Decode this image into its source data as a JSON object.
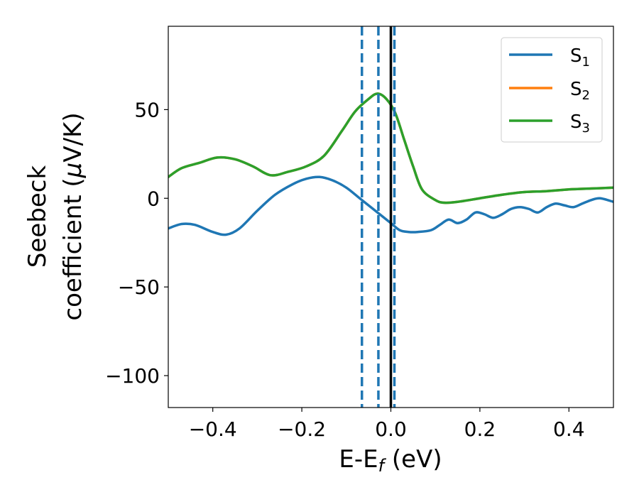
{
  "chart_data": {
    "type": "line",
    "title": "",
    "xlabel": {
      "main": "E-E",
      "sub": "f",
      "tail": " (eV)"
    },
    "ylabel": {
      "line1": "Seebeck",
      "line2": "coefficient  (",
      "mu": "μ",
      "line2_tail": "V/K)"
    },
    "xlim": [
      -0.5,
      0.5
    ],
    "ylim": [
      -118,
      97
    ],
    "xticks": [
      -0.4,
      -0.2,
      0.0,
      0.2,
      0.4
    ],
    "xtick_labels": [
      "−0.4",
      "−0.2",
      "0.0",
      "0.2",
      "0.4"
    ],
    "yticks": [
      -100,
      -50,
      0,
      50
    ],
    "ytick_labels": [
      "−100",
      "−50",
      "0",
      "50"
    ],
    "grid": false,
    "legend_position": "top-right",
    "colors": {
      "S1": "#1f77b4",
      "S2": "#ff7f0e",
      "S3": "#2ca02c",
      "fermi": "#000000"
    },
    "series": [
      {
        "name": "S1",
        "label_main": "S",
        "label_sub": "1",
        "color": "#1f77b4",
        "x": [
          -0.5,
          -0.47,
          -0.44,
          -0.4,
          -0.37,
          -0.34,
          -0.3,
          -0.26,
          -0.22,
          -0.19,
          -0.16,
          -0.13,
          -0.1,
          -0.07,
          -0.04,
          -0.02,
          0.0,
          0.02,
          0.04,
          0.06,
          0.09,
          0.11,
          0.13,
          0.15,
          0.17,
          0.19,
          0.21,
          0.23,
          0.25,
          0.27,
          0.29,
          0.31,
          0.33,
          0.35,
          0.37,
          0.39,
          0.41,
          0.43,
          0.45,
          0.47,
          0.5
        ],
        "y": [
          -17,
          -14.5,
          -15,
          -19,
          -20.5,
          -17,
          -7,
          2,
          8,
          11,
          12,
          10,
          6,
          0,
          -6,
          -10,
          -14,
          -18,
          -19,
          -19,
          -18,
          -15,
          -12,
          -14,
          -12,
          -8,
          -9,
          -11,
          -9,
          -6,
          -5,
          -6,
          -8,
          -5,
          -3,
          -4,
          -5,
          -3,
          -1,
          0,
          -2
        ]
      },
      {
        "name": "S2",
        "label_main": "S",
        "label_sub": "2",
        "color": "#ff7f0e",
        "x": [
          -0.5,
          -0.47,
          -0.43,
          -0.39,
          -0.35,
          -0.31,
          -0.27,
          -0.23,
          -0.19,
          -0.15,
          -0.11,
          -0.08,
          -0.05,
          -0.03,
          -0.01,
          0.01,
          0.03,
          0.05,
          0.07,
          0.1,
          0.12,
          0.15,
          0.2,
          0.25,
          0.3,
          0.35,
          0.4,
          0.45,
          0.5
        ],
        "y": [
          12,
          17,
          20,
          23,
          22,
          18,
          13,
          15,
          18,
          24,
          38,
          49,
          56,
          59,
          56,
          48,
          33,
          18,
          5,
          -1,
          -2.5,
          -2,
          0,
          2,
          3.5,
          4,
          5,
          5.5,
          6
        ]
      },
      {
        "name": "S3",
        "label_main": "S",
        "label_sub": "3",
        "color": "#2ca02c",
        "x": [
          -0.5,
          -0.47,
          -0.43,
          -0.39,
          -0.35,
          -0.31,
          -0.27,
          -0.23,
          -0.19,
          -0.15,
          -0.11,
          -0.08,
          -0.05,
          -0.03,
          -0.01,
          0.01,
          0.03,
          0.05,
          0.07,
          0.1,
          0.12,
          0.15,
          0.2,
          0.25,
          0.3,
          0.35,
          0.4,
          0.45,
          0.5
        ],
        "y": [
          12,
          17,
          20,
          23,
          22,
          18,
          13,
          15,
          18,
          24,
          38,
          49,
          56,
          59,
          56,
          48,
          33,
          18,
          5,
          -1,
          -2.5,
          -2,
          0,
          2,
          3.5,
          4,
          5,
          5.5,
          6
        ]
      }
    ],
    "vlines": [
      {
        "x": -0.065,
        "style": "dashed",
        "color": "#1f77b4"
      },
      {
        "x": -0.028,
        "style": "dashed",
        "color": "#1f77b4"
      },
      {
        "x": 0.008,
        "style": "dashed",
        "color": "#1f77b4"
      },
      {
        "x": 0.0,
        "style": "solid",
        "color": "#000000"
      }
    ]
  }
}
